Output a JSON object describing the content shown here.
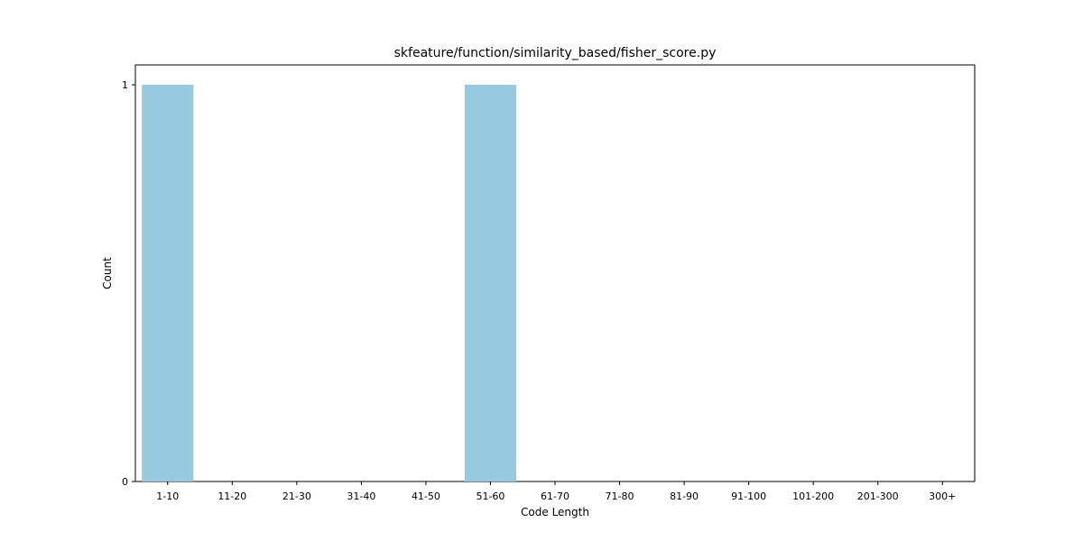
{
  "chart_data": {
    "type": "bar",
    "title": "skfeature/function/similarity_based/fisher_score.py",
    "xlabel": "Code Length",
    "ylabel": "Count",
    "categories": [
      "1-10",
      "11-20",
      "21-30",
      "31-40",
      "41-50",
      "51-60",
      "61-70",
      "71-80",
      "81-90",
      "91-100",
      "101-200",
      "201-300",
      "300+"
    ],
    "values": [
      1,
      0,
      0,
      0,
      0,
      1,
      0,
      0,
      0,
      0,
      0,
      0,
      0
    ],
    "yticks": [
      0,
      1
    ],
    "ylim": [
      0,
      1.05
    ],
    "grid": false,
    "bar_color": "#97cadf"
  }
}
